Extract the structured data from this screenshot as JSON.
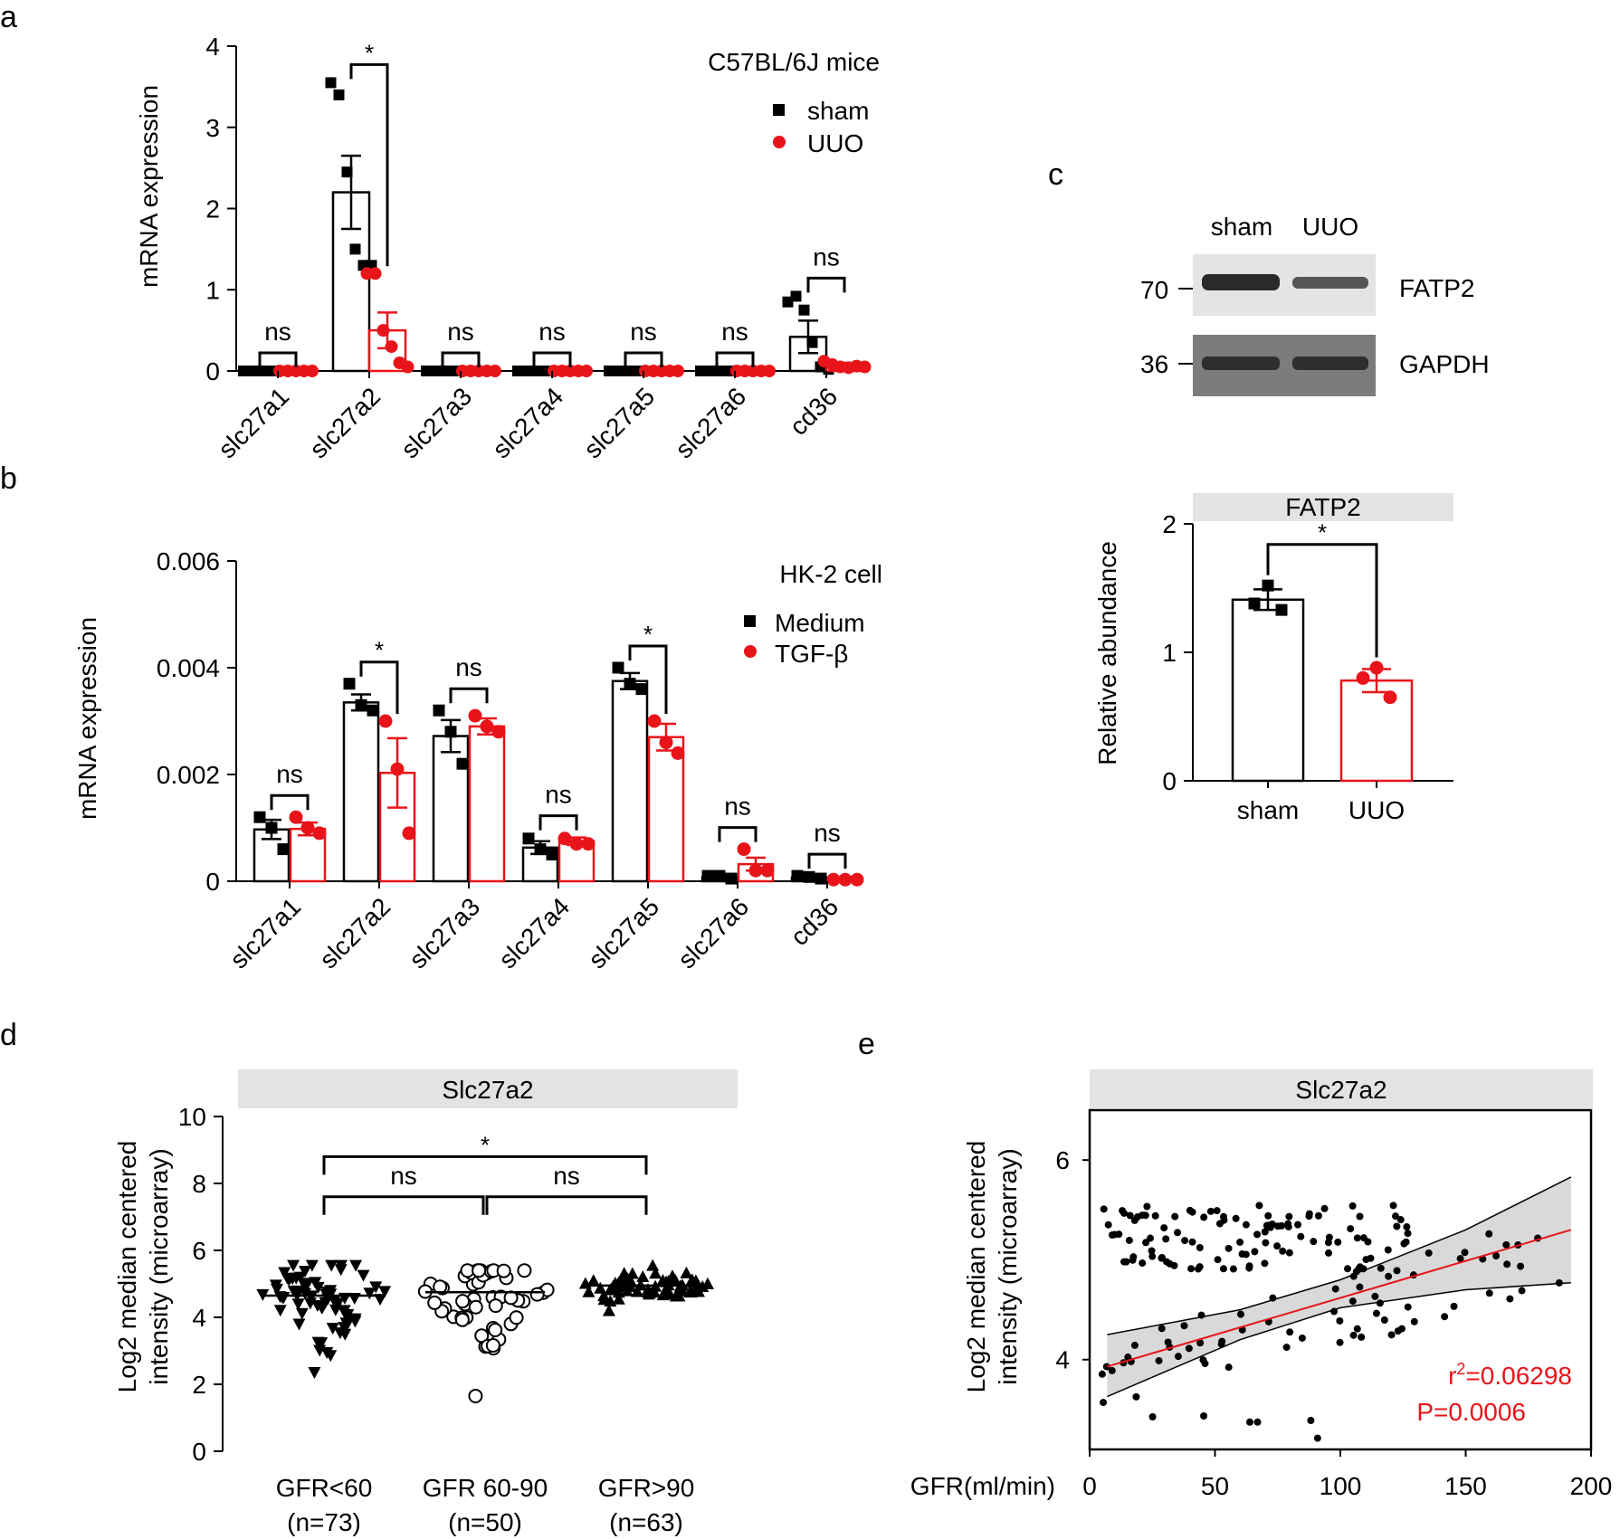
{
  "colors": {
    "black": "#000000",
    "red": "#e8141a",
    "strip": "#e3e3e3",
    "band_ci": "#d9d9d9"
  },
  "panel_labels": {
    "a": "a",
    "b": "b",
    "c": "c",
    "d": "d",
    "e": "e"
  },
  "chart_data": [
    {
      "panel": "a",
      "type": "bar",
      "title": "C57BL/6J mice",
      "ylabel": "mRNA expression",
      "ylim": [
        0,
        4
      ],
      "yticks": [
        0,
        1,
        2,
        3,
        4
      ],
      "ytick_labels": [
        "0",
        "1",
        "2",
        "3",
        "4"
      ],
      "categories": [
        "slc27a1",
        "slc27a2",
        "slc27a3",
        "slc27a4",
        "slc27a5",
        "slc27a6",
        "cd36"
      ],
      "series": [
        {
          "name": "sham",
          "color": "#000000",
          "marker": "square",
          "values": [
            0,
            2.2,
            0,
            0,
            0,
            0,
            0.42
          ],
          "errors": [
            0,
            0.45,
            0,
            0,
            0,
            0,
            0.2
          ],
          "points": [
            [
              0,
              0,
              0,
              0,
              0
            ],
            [
              3.55,
              3.4,
              2.45,
              1.5,
              1.3,
              1.3
            ],
            [
              0,
              0,
              0,
              0,
              0
            ],
            [
              0,
              0,
              0,
              0,
              0
            ],
            [
              0,
              0,
              0,
              0,
              0
            ],
            [
              0,
              0,
              0,
              0,
              0
            ],
            [
              0.85,
              0.92,
              0.75,
              0.35,
              0.05,
              0.02
            ]
          ]
        },
        {
          "name": "UUO",
          "color": "#e8141a",
          "marker": "circle",
          "values": [
            0,
            0.5,
            0,
            0,
            0,
            0,
            0.07
          ],
          "errors": [
            0,
            0.22,
            0,
            0,
            0,
            0,
            0.03
          ],
          "points": [
            [
              0,
              0,
              0,
              0,
              0
            ],
            [
              1.2,
              1.2,
              0.5,
              0.3,
              0.1,
              0.05
            ],
            [
              0,
              0,
              0,
              0,
              0
            ],
            [
              0,
              0,
              0,
              0,
              0
            ],
            [
              0,
              0,
              0,
              0,
              0
            ],
            [
              0,
              0,
              0,
              0,
              0
            ],
            [
              0.12,
              0.08,
              0.05,
              0.04,
              0.06,
              0.05
            ]
          ]
        }
      ],
      "comparisons": [
        "ns",
        "*",
        "ns",
        "ns",
        "ns",
        "ns",
        "ns"
      ]
    },
    {
      "panel": "b",
      "type": "bar",
      "title": "HK-2 cell",
      "ylabel": "mRNA expression",
      "ylim": [
        0,
        0.006
      ],
      "yticks": [
        0,
        0.002,
        0.004,
        0.006
      ],
      "ytick_labels": [
        "0",
        "0.002",
        "0.004",
        "0.006"
      ],
      "categories": [
        "slc27a1",
        "slc27a2",
        "slc27a3",
        "slc27a4",
        "slc27a5",
        "slc27a6",
        "cd36"
      ],
      "series": [
        {
          "name": "Medium",
          "color": "#000000",
          "marker": "square",
          "values": [
            0.00097,
            0.00335,
            0.00272,
            0.00063,
            0.00375,
            8e-05,
            7e-05
          ],
          "errors": [
            0.00018,
            0.00015,
            0.0003,
            0.00012,
            0.00015,
            4e-05,
            3e-05
          ],
          "points": [
            [
              0.0012,
              0.001,
              0.0006
            ],
            [
              0.0037,
              0.0033,
              0.0032
            ],
            [
              0.0032,
              0.0028,
              0.0022
            ],
            [
              0.0008,
              0.0006,
              0.0005
            ],
            [
              0.004,
              0.0037,
              0.0036
            ],
            [
              0.0001,
              0.0001,
              5e-05
            ],
            [
              0.0001,
              8e-05,
              5e-05
            ]
          ]
        },
        {
          "name": "TGF-β",
          "color": "#e8141a",
          "marker": "circle",
          "values": [
            0.00098,
            0.00203,
            0.0029,
            0.00075,
            0.0027,
            0.00032,
            3e-05
          ],
          "errors": [
            0.00012,
            0.00065,
            0.00015,
            7e-05,
            0.00025,
            0.00012,
            1e-05
          ],
          "points": [
            [
              0.0012,
              0.001,
              0.0009
            ],
            [
              0.003,
              0.0021,
              0.0009
            ],
            [
              0.0031,
              0.0029,
              0.0028
            ],
            [
              0.0008,
              0.0007,
              0.0007
            ],
            [
              0.003,
              0.0026,
              0.0024
            ],
            [
              0.0006,
              0.0002,
              0.0002
            ],
            [
              3e-05,
              3e-05,
              3e-05
            ]
          ]
        }
      ],
      "comparisons": [
        "ns",
        "*",
        "ns",
        "ns",
        "*",
        "ns",
        "ns"
      ]
    },
    {
      "panel": "c",
      "type": "bar",
      "strip_title": "FATP2",
      "ylabel": "Relative abundance",
      "ylim": [
        0,
        2
      ],
      "yticks": [
        0,
        1,
        2
      ],
      "ytick_labels": [
        "0",
        "1",
        "2"
      ],
      "categories": [
        "sham",
        "UUO"
      ],
      "values": [
        1.41,
        0.78
      ],
      "errors": [
        0.08,
        0.09
      ],
      "points": [
        [
          1.52,
          1.38,
          1.33
        ],
        [
          0.88,
          0.8,
          0.65
        ]
      ],
      "comparison": "*"
    },
    {
      "panel": "d",
      "type": "scatter",
      "strip_title": "Slc27a2",
      "ylabel": [
        "Log2 median centered",
        "intensity (microarray)"
      ],
      "ylim": [
        0,
        10
      ],
      "yticks": [
        0,
        2,
        4,
        6,
        8,
        10
      ],
      "ytick_labels": [
        "0",
        "2",
        "4",
        "6",
        "8",
        "10"
      ],
      "groups": [
        {
          "label": "GFR<60",
          "n_label": "(n=73)",
          "marker": "triangle-down",
          "n": 73,
          "median": 4.65,
          "min": 2.35,
          "max": 5.55
        },
        {
          "label": "GFR 60-90",
          "n_label": "(n=50)",
          "marker": "open-circle",
          "n": 50,
          "median": 4.75,
          "min": 1.65,
          "max": 5.4
        },
        {
          "label": "GFR>90",
          "n_label": "(n=63)",
          "marker": "triangle-up",
          "n": 63,
          "median": 4.95,
          "min": 4.2,
          "max": 5.55
        }
      ],
      "comparisons": [
        {
          "from": 0,
          "to": 1,
          "label": "ns"
        },
        {
          "from": 1,
          "to": 2,
          "label": "ns"
        },
        {
          "from": 0,
          "to": 2,
          "label": "*"
        }
      ]
    },
    {
      "panel": "e",
      "type": "scatter",
      "strip_title": "Slc27a2",
      "xlabel": "GFR(ml/min)",
      "ylabel": [
        "Log2 median centered",
        "intensity (microarray)"
      ],
      "xlim": [
        0,
        200
      ],
      "ylim": [
        3.1,
        6.5
      ],
      "xticks": [
        0,
        50,
        100,
        150,
        200
      ],
      "xtick_labels": [
        "0",
        "50",
        "100",
        "150",
        "200"
      ],
      "yticks": [
        4,
        6
      ],
      "ytick_labels": [
        "4",
        "6"
      ],
      "n_points": 186,
      "regression": {
        "x": [
          7,
          192
        ],
        "y": [
          3.93,
          5.3
        ]
      },
      "ci_upper": {
        "x": [
          7,
          60,
          100,
          150,
          192
        ],
        "y": [
          4.25,
          4.5,
          4.8,
          5.3,
          5.83
        ]
      },
      "ci_lower": {
        "x": [
          7,
          60,
          100,
          150,
          192
        ],
        "y": [
          3.63,
          4.2,
          4.52,
          4.7,
          4.77
        ]
      },
      "stats": {
        "r2_prefix": "r",
        "r2_sup": "2",
        "r2_value": "=0.06298",
        "p": "P=0.0006"
      }
    }
  ],
  "western_blot": {
    "lanes": [
      "sham",
      "UUO"
    ],
    "markers": [
      "70",
      "36"
    ],
    "proteins": [
      "FATP2",
      "GAPDH"
    ]
  }
}
